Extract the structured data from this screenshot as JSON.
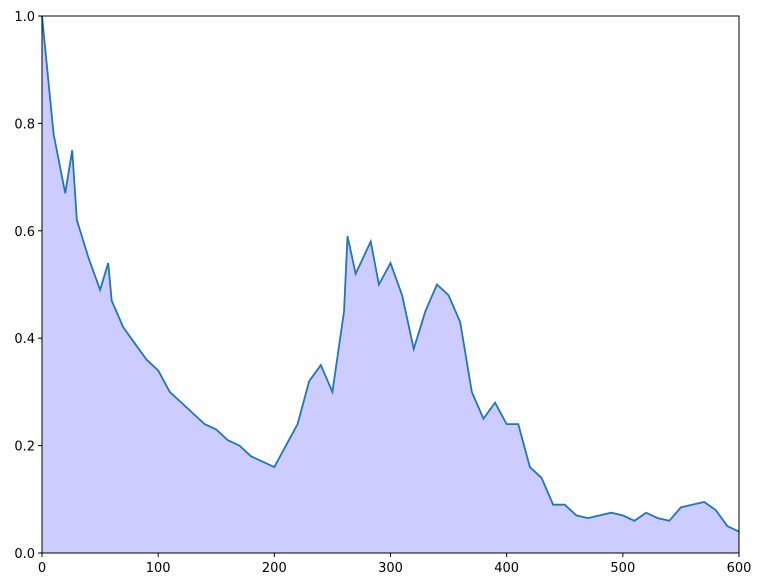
{
  "chart_data": {
    "type": "area",
    "x": [
      0,
      10,
      20,
      26,
      30,
      40,
      50,
      57,
      60,
      70,
      80,
      90,
      100,
      110,
      120,
      130,
      140,
      150,
      160,
      170,
      180,
      190,
      200,
      210,
      220,
      230,
      240,
      250,
      260,
      263,
      270,
      283,
      290,
      300,
      310,
      320,
      330,
      340,
      350,
      360,
      370,
      380,
      390,
      400,
      410,
      420,
      430,
      440,
      450,
      460,
      470,
      480,
      490,
      500,
      510,
      520,
      530,
      540,
      550,
      560,
      570,
      580,
      590,
      600
    ],
    "series": [
      {
        "color": "#1f77b4",
        "fill": "#ccccff",
        "values": [
          1.0,
          0.78,
          0.67,
          0.75,
          0.62,
          0.55,
          0.49,
          0.54,
          0.47,
          0.42,
          0.39,
          0.36,
          0.34,
          0.3,
          0.28,
          0.26,
          0.24,
          0.23,
          0.21,
          0.2,
          0.18,
          0.17,
          0.16,
          0.2,
          0.24,
          0.32,
          0.35,
          0.3,
          0.45,
          0.59,
          0.52,
          0.58,
          0.5,
          0.54,
          0.48,
          0.38,
          0.45,
          0.5,
          0.48,
          0.43,
          0.3,
          0.25,
          0.28,
          0.24,
          0.24,
          0.16,
          0.14,
          0.09,
          0.09,
          0.07,
          0.065,
          0.07,
          0.075,
          0.07,
          0.06,
          0.075,
          0.065,
          0.06,
          0.085,
          0.09,
          0.095,
          0.08,
          0.05,
          0.04
        ]
      }
    ],
    "xlim": [
      0,
      600
    ],
    "xticks": [
      0,
      100,
      200,
      300,
      400,
      500,
      600
    ],
    "ylim": [
      0,
      1
    ],
    "yticks": [
      {
        "value": 0,
        "label": "0.0"
      },
      0.2,
      0.4,
      0.6,
      0.8,
      {
        "value": 1,
        "label": "1.0"
      }
    ]
  }
}
